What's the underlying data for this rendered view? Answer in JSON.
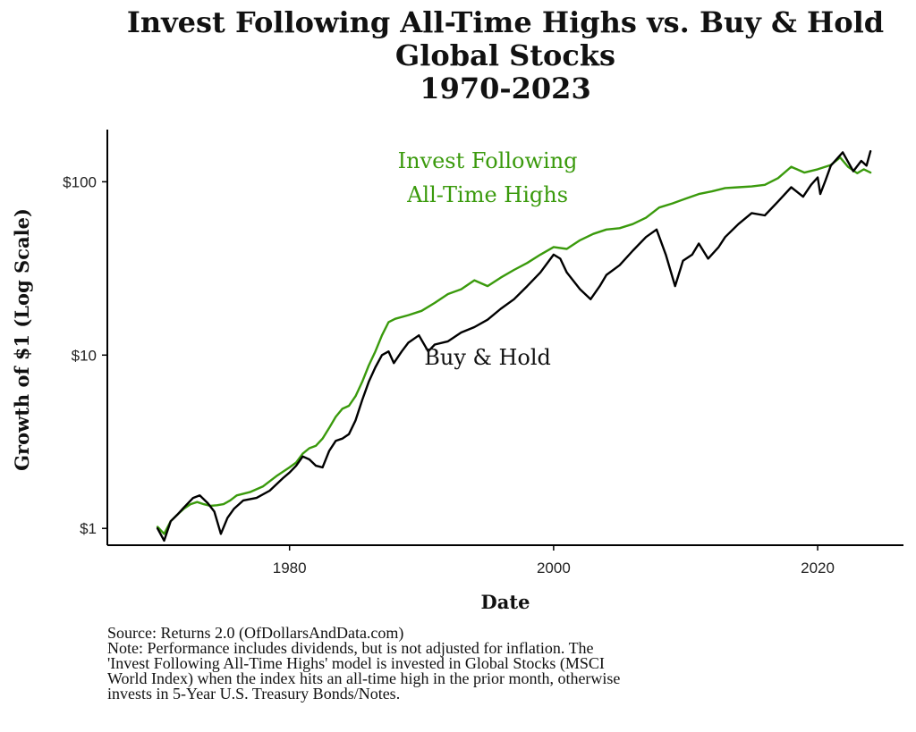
{
  "chart_data": {
    "type": "line",
    "title": [
      "Invest Following All-Time Highs vs. Buy & Hold",
      "Global Stocks",
      "1970-2023"
    ],
    "xlabel": "Date",
    "ylabel": "Growth of $1 (Log Scale)",
    "x_ticks": [
      1980,
      2000,
      2020
    ],
    "y_scale": "log",
    "y_ticks": [
      {
        "value": 1,
        "label": "$1"
      },
      {
        "value": 10,
        "label": "$10"
      },
      {
        "value": 100,
        "label": "$100"
      }
    ],
    "xlim": [
      1966.2,
      2026.5
    ],
    "ylim": [
      0.8,
      200
    ],
    "grid": false,
    "series": [
      {
        "name": "Invest Following All-Time Highs",
        "color": "#3a9a0c",
        "points": [
          [
            1970.0,
            1.02
          ],
          [
            1970.5,
            0.93
          ],
          [
            1971.0,
            1.1
          ],
          [
            1971.5,
            1.2
          ],
          [
            1972.0,
            1.3
          ],
          [
            1972.5,
            1.38
          ],
          [
            1973.0,
            1.42
          ],
          [
            1973.5,
            1.38
          ],
          [
            1974.0,
            1.35
          ],
          [
            1974.5,
            1.36
          ],
          [
            1975.0,
            1.38
          ],
          [
            1975.5,
            1.45
          ],
          [
            1976.0,
            1.55
          ],
          [
            1977.0,
            1.62
          ],
          [
            1978.0,
            1.75
          ],
          [
            1979.0,
            2.0
          ],
          [
            1980.0,
            2.25
          ],
          [
            1980.5,
            2.4
          ],
          [
            1981.0,
            2.7
          ],
          [
            1981.5,
            2.9
          ],
          [
            1982.0,
            3.0
          ],
          [
            1982.5,
            3.3
          ],
          [
            1983.0,
            3.8
          ],
          [
            1983.5,
            4.4
          ],
          [
            1984.0,
            4.9
          ],
          [
            1984.5,
            5.1
          ],
          [
            1985.0,
            5.8
          ],
          [
            1985.5,
            7.0
          ],
          [
            1986.0,
            8.7
          ],
          [
            1986.5,
            10.5
          ],
          [
            1987.0,
            13.0
          ],
          [
            1987.5,
            15.5
          ],
          [
            1988.0,
            16.2
          ],
          [
            1989.0,
            17.0
          ],
          [
            1990.0,
            18.0
          ],
          [
            1991.0,
            20.0
          ],
          [
            1992.0,
            22.5
          ],
          [
            1993.0,
            24.0
          ],
          [
            1994.0,
            27.0
          ],
          [
            1995.0,
            25.0
          ],
          [
            1996.0,
            28.0
          ],
          [
            1997.0,
            31.0
          ],
          [
            1998.0,
            34.0
          ],
          [
            1999.0,
            38.0
          ],
          [
            2000.0,
            42.0
          ],
          [
            2001.0,
            41.0
          ],
          [
            2002.0,
            46.0
          ],
          [
            2003.0,
            50.0
          ],
          [
            2004.0,
            53.0
          ],
          [
            2005.0,
            54.0
          ],
          [
            2006.0,
            57.0
          ],
          [
            2007.0,
            62.0
          ],
          [
            2008.0,
            71.0
          ],
          [
            2009.0,
            75.0
          ],
          [
            2010.0,
            80.0
          ],
          [
            2011.0,
            85.0
          ],
          [
            2012.0,
            88.0
          ],
          [
            2013.0,
            92.0
          ],
          [
            2014.0,
            93.0
          ],
          [
            2015.0,
            94.0
          ],
          [
            2016.0,
            96.0
          ],
          [
            2017.0,
            105.0
          ],
          [
            2018.0,
            122.0
          ],
          [
            2019.0,
            113.0
          ],
          [
            2020.0,
            118.0
          ],
          [
            2021.0,
            125.0
          ],
          [
            2021.7,
            138.0
          ],
          [
            2022.3,
            122.0
          ],
          [
            2023.0,
            112.0
          ],
          [
            2023.5,
            118.0
          ],
          [
            2024.0,
            113.0
          ]
        ]
      },
      {
        "name": "Buy & Hold",
        "color": "#000000",
        "points": [
          [
            1970.0,
            1.0
          ],
          [
            1970.5,
            0.85
          ],
          [
            1971.0,
            1.1
          ],
          [
            1971.5,
            1.2
          ],
          [
            1972.0,
            1.32
          ],
          [
            1972.7,
            1.5
          ],
          [
            1973.2,
            1.55
          ],
          [
            1973.8,
            1.4
          ],
          [
            1974.3,
            1.25
          ],
          [
            1974.8,
            0.93
          ],
          [
            1975.3,
            1.15
          ],
          [
            1975.8,
            1.3
          ],
          [
            1976.5,
            1.45
          ],
          [
            1977.5,
            1.5
          ],
          [
            1978.5,
            1.65
          ],
          [
            1979.5,
            1.95
          ],
          [
            1980.0,
            2.1
          ],
          [
            1980.5,
            2.3
          ],
          [
            1981.0,
            2.6
          ],
          [
            1981.5,
            2.5
          ],
          [
            1982.0,
            2.3
          ],
          [
            1982.5,
            2.25
          ],
          [
            1983.0,
            2.8
          ],
          [
            1983.5,
            3.2
          ],
          [
            1984.0,
            3.3
          ],
          [
            1984.5,
            3.5
          ],
          [
            1985.0,
            4.2
          ],
          [
            1985.5,
            5.5
          ],
          [
            1986.0,
            7.0
          ],
          [
            1986.5,
            8.5
          ],
          [
            1987.0,
            10.0
          ],
          [
            1987.5,
            10.5
          ],
          [
            1987.9,
            9.0
          ],
          [
            1988.5,
            10.5
          ],
          [
            1989.0,
            11.8
          ],
          [
            1989.8,
            13.0
          ],
          [
            1990.5,
            10.5
          ],
          [
            1991.0,
            11.5
          ],
          [
            1992.0,
            12.0
          ],
          [
            1993.0,
            13.5
          ],
          [
            1994.0,
            14.5
          ],
          [
            1995.0,
            16.0
          ],
          [
            1996.0,
            18.5
          ],
          [
            1997.0,
            21.0
          ],
          [
            1998.0,
            25.0
          ],
          [
            1999.0,
            30.0
          ],
          [
            2000.0,
            38.0
          ],
          [
            2000.5,
            36.0
          ],
          [
            2001.0,
            30.0
          ],
          [
            2002.0,
            24.0
          ],
          [
            2002.8,
            21.0
          ],
          [
            2003.5,
            25.0
          ],
          [
            2004.0,
            29.0
          ],
          [
            2005.0,
            33.0
          ],
          [
            2006.0,
            40.0
          ],
          [
            2007.0,
            48.0
          ],
          [
            2007.8,
            53.0
          ],
          [
            2008.5,
            38.0
          ],
          [
            2009.2,
            25.0
          ],
          [
            2009.8,
            35.0
          ],
          [
            2010.5,
            38.0
          ],
          [
            2011.0,
            44.0
          ],
          [
            2011.7,
            36.0
          ],
          [
            2012.5,
            42.0
          ],
          [
            2013.0,
            48.0
          ],
          [
            2014.0,
            57.0
          ],
          [
            2015.0,
            66.0
          ],
          [
            2016.0,
            64.0
          ],
          [
            2017.0,
            77.0
          ],
          [
            2018.0,
            93.0
          ],
          [
            2018.9,
            82.0
          ],
          [
            2019.5,
            96.0
          ],
          [
            2020.0,
            106.0
          ],
          [
            2020.2,
            85.0
          ],
          [
            2020.6,
            102.0
          ],
          [
            2021.0,
            124.0
          ],
          [
            2021.9,
            148.0
          ],
          [
            2022.7,
            115.0
          ],
          [
            2023.3,
            132.0
          ],
          [
            2023.7,
            124.0
          ],
          [
            2024.0,
            150.0
          ]
        ]
      }
    ],
    "annotations": [
      {
        "lines": [
          "Invest Following",
          "All-Time Highs"
        ],
        "color": "#3a9a0c",
        "at": [
          1995,
          120
        ]
      },
      {
        "lines": [
          "Buy & Hold"
        ],
        "color": "#111111",
        "at": [
          1995,
          8.8
        ]
      }
    ]
  },
  "footnote": [
    "Source:  Returns 2.0 (OfDollarsAndData.com)",
    "Note: Performance includes dividends, but is not adjusted for inflation. The",
    "'Invest Following All-Time Highs' model is invested in Global Stocks (MSCI",
    "World Index) when the index hits an all-time high in the prior month, otherwise",
    "invests in 5-Year U.S. Treasury Bonds/Notes."
  ]
}
